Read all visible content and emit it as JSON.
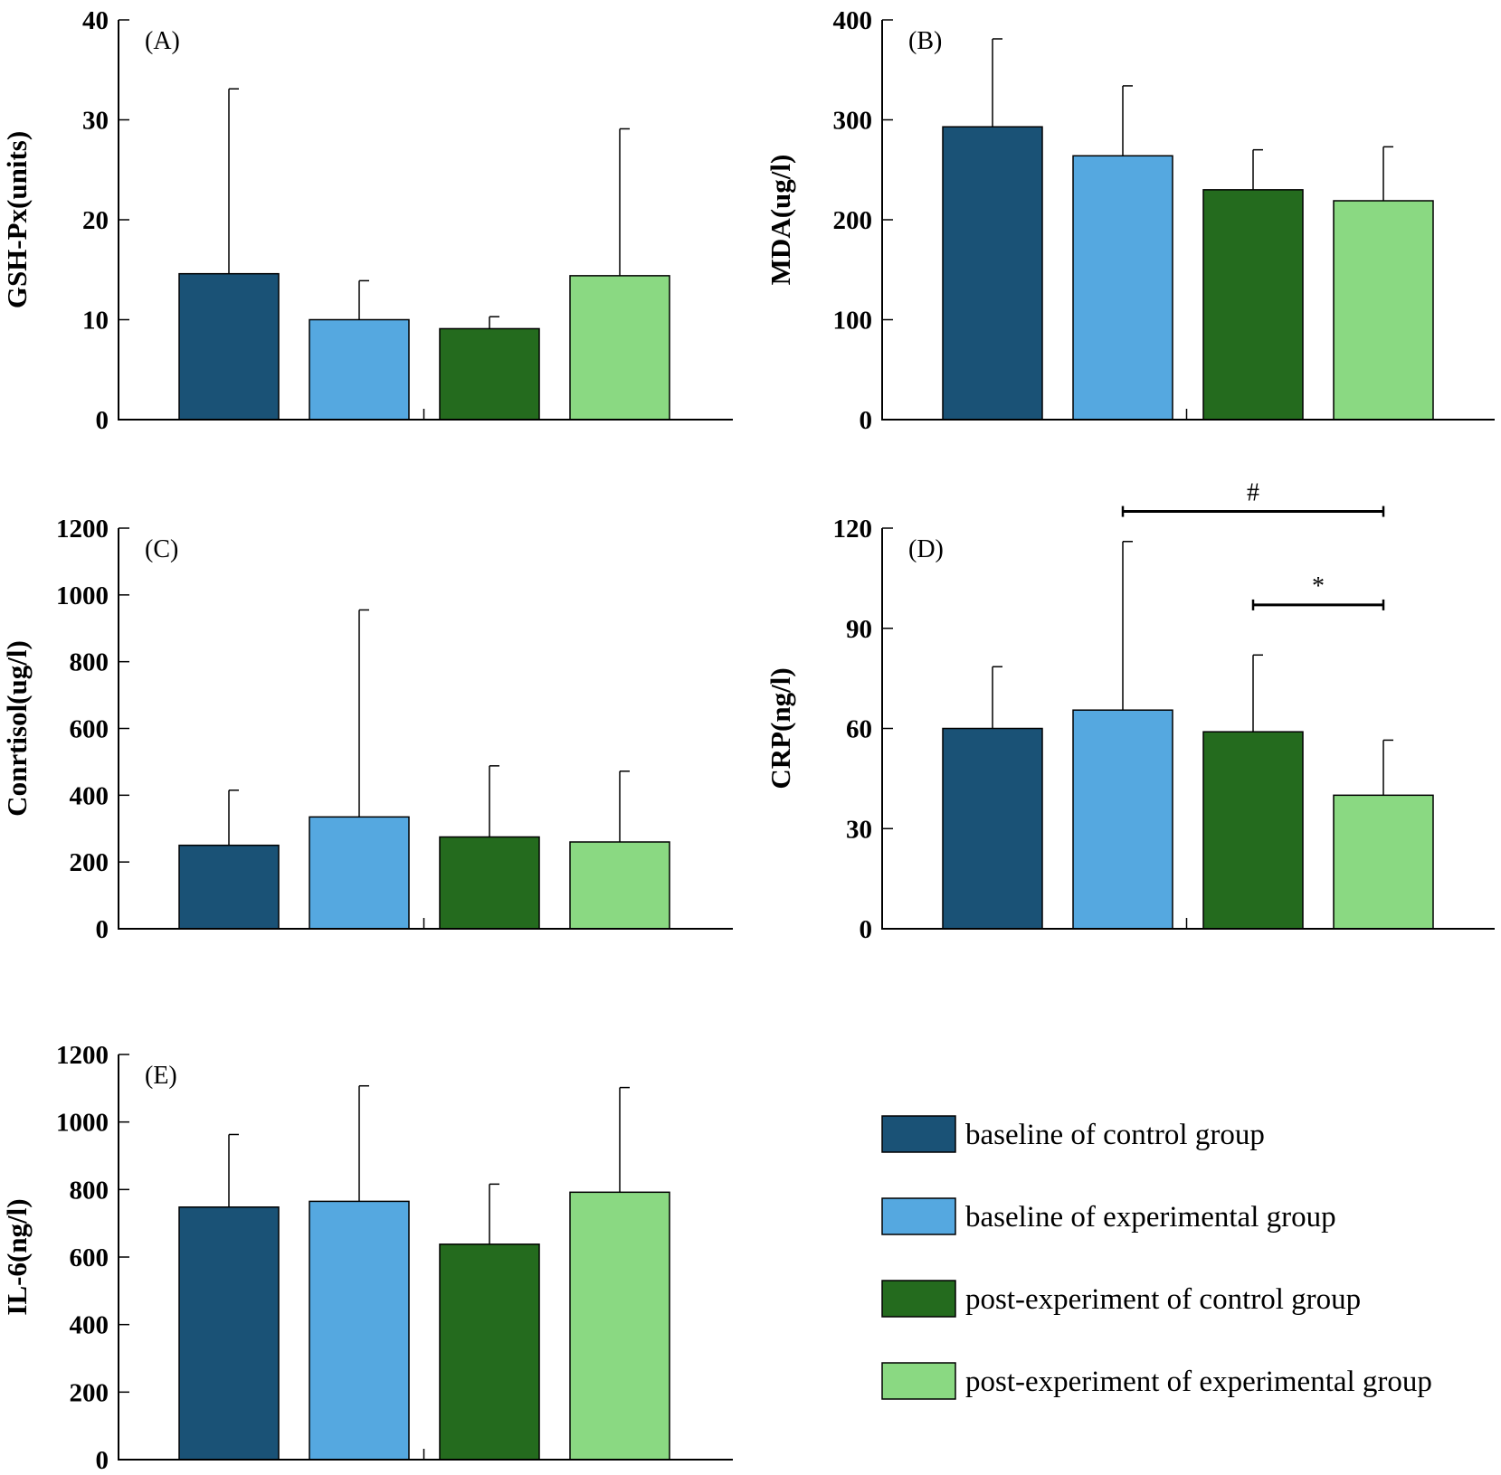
{
  "legend": [
    {
      "label": "baseline of control group",
      "color": "#1a5276"
    },
    {
      "label": "baseline of experimental group",
      "color": "#55a8e0"
    },
    {
      "label": "post-experiment of control group",
      "color": "#246b1e"
    },
    {
      "label": "post-experiment of experimental group",
      "color": "#8ad982"
    }
  ],
  "chart_data": [
    {
      "type": "bar",
      "panel_label": "(A)",
      "ylabel": "GSH-Px(units)",
      "ylim": [
        0,
        40
      ],
      "yticks": [
        0,
        10,
        20,
        30,
        40
      ],
      "values": [
        14.6,
        10.0,
        9.1,
        14.4
      ],
      "errors": [
        18.5,
        3.9,
        1.2,
        14.7
      ],
      "significance": []
    },
    {
      "type": "bar",
      "panel_label": "(B)",
      "ylabel": "MDA(ug/l)",
      "ylim": [
        0,
        400
      ],
      "yticks": [
        0,
        100,
        200,
        300,
        400
      ],
      "values": [
        293,
        264,
        230,
        219
      ],
      "errors": [
        88,
        70,
        40,
        54
      ],
      "significance": []
    },
    {
      "type": "bar",
      "panel_label": "(C)",
      "ylabel": "Conrtisol(ug/l)",
      "ylim": [
        0,
        1200
      ],
      "yticks": [
        0,
        200,
        400,
        600,
        800,
        1000,
        1200
      ],
      "values": [
        250,
        335,
        275,
        260
      ],
      "errors": [
        165,
        620,
        213,
        212
      ],
      "significance": []
    },
    {
      "type": "bar",
      "panel_label": "(D)",
      "ylabel": "CRP(ng/l)",
      "ylim": [
        0,
        120
      ],
      "yticks": [
        0,
        30,
        60,
        90,
        120
      ],
      "values": [
        60,
        65.5,
        59,
        40
      ],
      "errors": [
        18.5,
        50.5,
        23,
        16.5
      ],
      "significance": [
        {
          "from": 1,
          "to": 3,
          "y": 125,
          "symbol": "#"
        },
        {
          "from": 2,
          "to": 3,
          "y": 97,
          "symbol": "*"
        }
      ]
    },
    {
      "type": "bar",
      "panel_label": "(E)",
      "ylabel": "IL-6(ng/l)",
      "ylim": [
        0,
        1200
      ],
      "yticks": [
        0,
        200,
        400,
        600,
        800,
        1000,
        1200
      ],
      "values": [
        748,
        765,
        638,
        792
      ],
      "errors": [
        215,
        342,
        178,
        310
      ],
      "significance": []
    }
  ]
}
